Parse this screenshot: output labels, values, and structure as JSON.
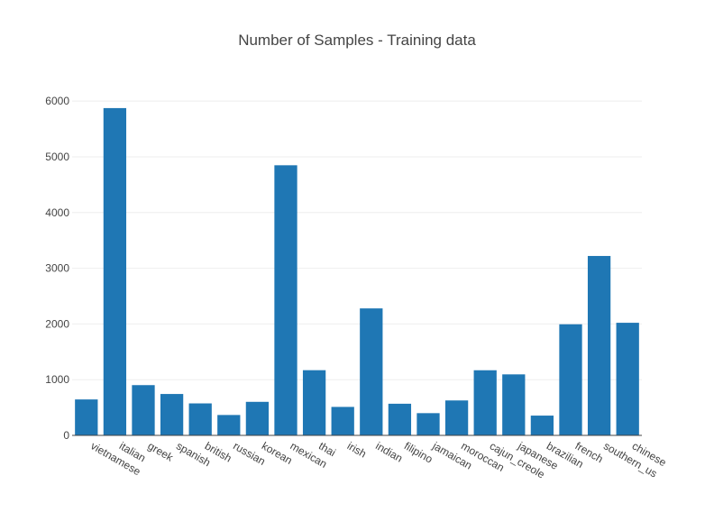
{
  "chart_data": {
    "type": "bar",
    "title": "Number of Samples - Training data",
    "xlabel": "",
    "ylabel": "",
    "categories": [
      "vietnamese",
      "italian",
      "greek",
      "spanish",
      "british",
      "russian",
      "korean",
      "mexican",
      "thai",
      "irish",
      "indian",
      "filipino",
      "jamaican",
      "moroccan",
      "cajun_creole",
      "japanese",
      "brazilian",
      "french",
      "southern_us",
      "chinese"
    ],
    "values": [
      645,
      5874,
      902,
      743,
      574,
      366,
      602,
      4848,
      1170,
      511,
      2279,
      568,
      399,
      627,
      1169,
      1095,
      355,
      1994,
      3220,
      2021
    ],
    "yticks": [
      0,
      1000,
      2000,
      3000,
      4000,
      5000,
      6000
    ],
    "ylim": [
      0,
      6180
    ],
    "grid": true,
    "legend": "none",
    "colors": {
      "bar": "#1f77b4",
      "grid": "#eeeeee",
      "axis": "#444444",
      "text": "#444444"
    }
  }
}
